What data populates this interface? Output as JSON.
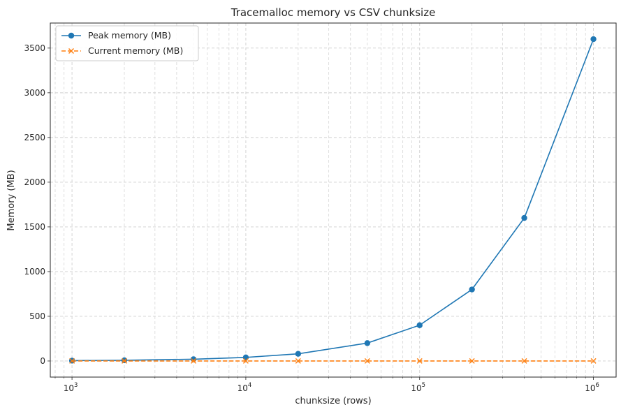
{
  "chart_data": {
    "type": "line",
    "title": "Tracemalloc memory vs CSV chunksize",
    "xlabel": "chunksize (rows)",
    "ylabel": "Memory (MB)",
    "x_scale": "log",
    "x": [
      1000,
      2000,
      5000,
      10000,
      20000,
      50000,
      100000,
      200000,
      400000,
      1000000
    ],
    "xlim": [
      750,
      1350000
    ],
    "ylim": [
      -180,
      3780
    ],
    "x_ticks": [
      1000,
      10000,
      100000,
      1000000
    ],
    "x_tick_labels": [
      {
        "base": "10",
        "exp": "3"
      },
      {
        "base": "10",
        "exp": "4"
      },
      {
        "base": "10",
        "exp": "5"
      },
      {
        "base": "10",
        "exp": "6"
      }
    ],
    "y_ticks": [
      0,
      500,
      1000,
      1500,
      2000,
      2500,
      3000,
      3500
    ],
    "y_tick_labels": [
      "0",
      "500",
      "1000",
      "1500",
      "2000",
      "2500",
      "3000",
      "3500"
    ],
    "grid": true,
    "legend_position": "top-left",
    "series": [
      {
        "name": "Peak memory (MB)",
        "color": "#1f77b4",
        "marker": "circle",
        "linestyle": "solid",
        "values": [
          4,
          8,
          20,
          40,
          80,
          200,
          400,
          800,
          1600,
          3600
        ]
      },
      {
        "name": "Current memory (MB)",
        "color": "#ff7f0e",
        "marker": "x",
        "linestyle": "dashed",
        "values": [
          0.5,
          0.5,
          0.5,
          0.5,
          0.5,
          0.5,
          0.5,
          0.5,
          0.5,
          0.5
        ]
      }
    ]
  }
}
